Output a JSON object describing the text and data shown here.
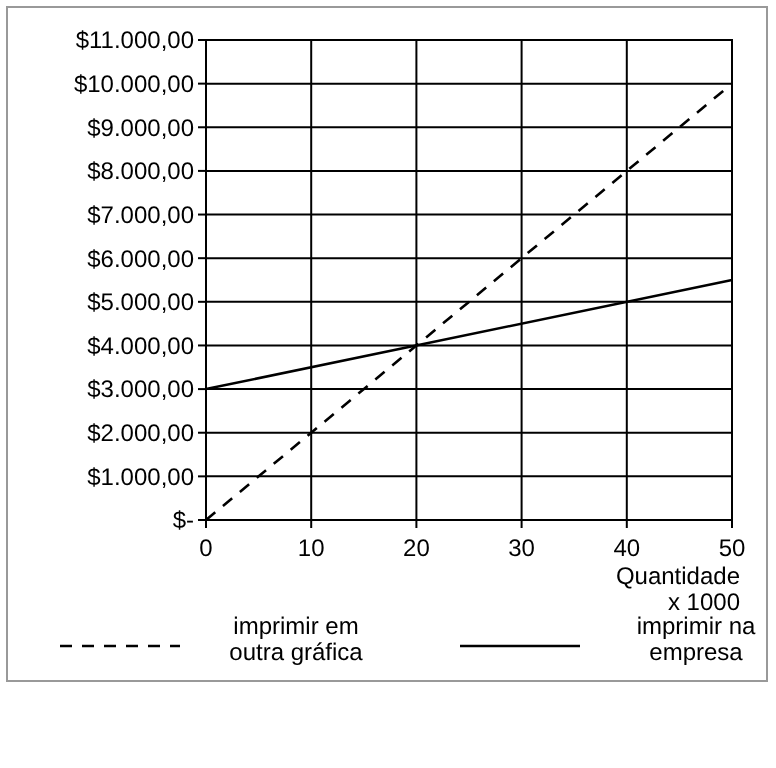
{
  "chart_data": {
    "type": "line",
    "xlabel": "Quantidade\nx 1000",
    "x": [
      0,
      50
    ],
    "xlim": [
      0,
      50
    ],
    "xticks": [
      0,
      10,
      20,
      30,
      40,
      50
    ],
    "ylim": [
      0,
      11000
    ],
    "yticks": [
      {
        "value": 0,
        "label": "$-"
      },
      {
        "value": 1000,
        "label": "$1.000,00"
      },
      {
        "value": 2000,
        "label": "$2.000,00"
      },
      {
        "value": 3000,
        "label": "$3.000,00"
      },
      {
        "value": 4000,
        "label": "$4.000,00"
      },
      {
        "value": 5000,
        "label": "$5.000,00"
      },
      {
        "value": 6000,
        "label": "$6.000,00"
      },
      {
        "value": 7000,
        "label": "$7.000,00"
      },
      {
        "value": 8000,
        "label": "$8.000,00"
      },
      {
        "value": 9000,
        "label": "$9.000,00"
      },
      {
        "value": 10000,
        "label": "$10.000,00"
      },
      {
        "value": 11000,
        "label": "$11.000,00"
      }
    ],
    "grid": true,
    "legend": "bottom",
    "marker": "none",
    "series": [
      {
        "name": "imprimir em outra gráfica",
        "color": "#000000",
        "line_style": "dashed",
        "values": [
          0,
          10000
        ]
      },
      {
        "name": "imprimir na empresa",
        "color": "#000000",
        "line_style": "solid",
        "values": [
          3000,
          5500
        ]
      }
    ]
  }
}
